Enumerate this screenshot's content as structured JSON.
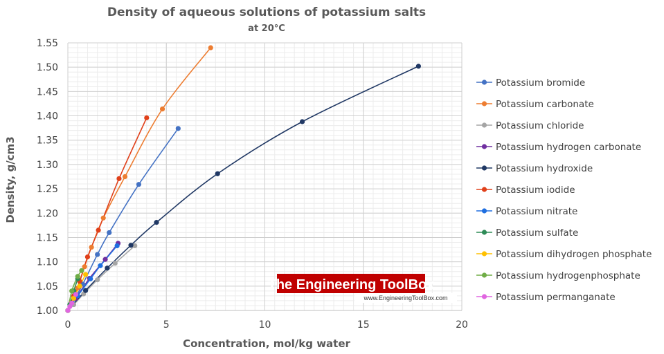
{
  "chart_data": {
    "type": "line",
    "title": "Density of aqueous solutions of potassium salts",
    "subtitle": "at 20°C",
    "xlabel": "Concentration, mol/kg water",
    "ylabel": "Density, g/cm3",
    "xlim": [
      0,
      20
    ],
    "ylim": [
      1.0,
      1.55
    ],
    "xticks": [
      0,
      5,
      10,
      15,
      20
    ],
    "yticks": [
      1.0,
      1.05,
      1.1,
      1.15,
      1.2,
      1.25,
      1.3,
      1.35,
      1.4,
      1.45,
      1.5,
      1.55
    ],
    "grid": true,
    "legend_position": "right",
    "series": [
      {
        "name": "Potassium bromide",
        "color": "#4472C4",
        "x": [
          0,
          0.17,
          0.36,
          0.76,
          1.5,
          2.1,
          3.6,
          5.6
        ],
        "y": [
          1.0,
          1.012,
          1.025,
          1.054,
          1.115,
          1.16,
          1.259,
          1.374
        ]
      },
      {
        "name": "Potassium carbonate",
        "color": "#ED7D31",
        "x": [
          0,
          0.15,
          0.3,
          0.5,
          0.85,
          1.2,
          1.8,
          2.9,
          4.8,
          7.25
        ],
        "y": [
          1.0,
          1.014,
          1.028,
          1.046,
          1.09,
          1.13,
          1.19,
          1.275,
          1.414,
          1.54
        ]
      },
      {
        "name": "Potassium chloride",
        "color": "#A5A5A5",
        "x": [
          0,
          0.3,
          0.8,
          1.5,
          2.4,
          3.4
        ],
        "y": [
          1.0,
          1.012,
          1.034,
          1.063,
          1.097,
          1.133
        ]
      },
      {
        "name": "Potassium hydrogen carbonate",
        "color": "#7030A0",
        "x": [
          0,
          0.4,
          1.1,
          1.9,
          2.55
        ],
        "y": [
          1.0,
          1.025,
          1.066,
          1.105,
          1.138
        ]
      },
      {
        "name": "Potassium hydroxide",
        "color": "#203864",
        "x": [
          0,
          0.9,
          2.0,
          3.2,
          4.5,
          7.6,
          11.9,
          17.8
        ],
        "y": [
          1.0,
          1.041,
          1.087,
          1.134,
          1.181,
          1.281,
          1.388,
          1.502
        ]
      },
      {
        "name": "Potassium iodide",
        "color": "#E0401A",
        "x": [
          0,
          0.3,
          0.6,
          1.0,
          1.55,
          2.6,
          4.0
        ],
        "y": [
          1.0,
          1.03,
          1.06,
          1.11,
          1.165,
          1.271,
          1.396
        ]
      },
      {
        "name": "Potassium nitrate",
        "color": "#1F6FE0",
        "x": [
          0,
          0.5,
          1.15,
          1.65,
          2.5
        ],
        "y": [
          1.0,
          1.03,
          1.065,
          1.092,
          1.133
        ]
      },
      {
        "name": "Potassium sulfate",
        "color": "#2E8B57",
        "x": [
          0,
          0.1,
          0.3,
          0.5
        ],
        "y": [
          1.0,
          1.012,
          1.04,
          1.065
        ]
      },
      {
        "name": "Potassium dihydrogen phosphate",
        "color": "#FFC000",
        "x": [
          0,
          0.3,
          0.6,
          0.9
        ],
        "y": [
          1.0,
          1.025,
          1.05,
          1.074
        ]
      },
      {
        "name": "Potassium hydrogenphosphate",
        "color": "#70AD47",
        "x": [
          0,
          0.2,
          0.5,
          0.7
        ],
        "y": [
          1.0,
          1.04,
          1.07,
          1.082
        ]
      },
      {
        "name": "Potassium permanganate",
        "color": "#E066E0",
        "x": [
          0,
          0.1,
          0.2,
          0.4
        ],
        "y": [
          1.0,
          1.008,
          1.015,
          1.033
        ]
      }
    ]
  },
  "watermark": {
    "brand": "The Engineering ToolBox",
    "url": "www.EngineeringToolBox.com",
    "bg_color": "#C00000"
  }
}
